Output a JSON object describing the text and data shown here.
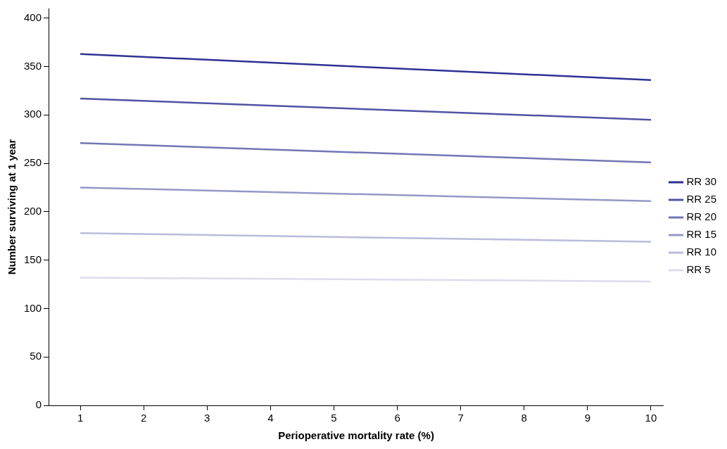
{
  "chart_data": {
    "type": "line",
    "xlabel": "Perioperative mortality rate (%)",
    "ylabel": "Number surviving at 1 year",
    "x": [
      1,
      10
    ],
    "series": [
      {
        "name": "RR 30",
        "color": "#2e3192",
        "values": [
          363,
          336
        ]
      },
      {
        "name": "RR 25",
        "color": "#4f52a3",
        "values": [
          317,
          295
        ]
      },
      {
        "name": "RR 20",
        "color": "#7375b5",
        "values": [
          271,
          251
        ]
      },
      {
        "name": "RR 15",
        "color": "#9597c7",
        "values": [
          225,
          211
        ]
      },
      {
        "name": "RR 10",
        "color": "#babbdb",
        "values": [
          178,
          169
        ]
      },
      {
        "name": "RR 5",
        "color": "#dcdced",
        "values": [
          132,
          128
        ]
      }
    ],
    "xlim": [
      0.5,
      10.2
    ],
    "xticks": [
      1,
      2,
      3,
      4,
      5,
      6,
      7,
      8,
      9,
      10
    ],
    "ylim": [
      0,
      410
    ],
    "yticks": [
      0,
      50,
      100,
      150,
      200,
      250,
      300,
      350,
      400
    ],
    "grid": false,
    "legend": "right",
    "marker": "none",
    "line_style": "solid"
  }
}
